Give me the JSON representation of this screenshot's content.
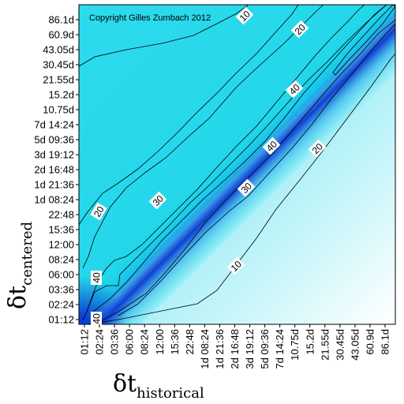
{
  "chart_data": {
    "type": "heatmap",
    "copyright": "Copyright Gilles Zumbach 2012",
    "xlabel": {
      "symbol": "δt",
      "subscript": "historical"
    },
    "ylabel": {
      "symbol": "δt",
      "subscript": "centered"
    },
    "ticks": [
      "01:12",
      "02:24",
      "03:36",
      "06:00",
      "08:24",
      "12:00",
      "15:36",
      "22:48",
      "1d 08:24",
      "1d 21:36",
      "2d 16:48",
      "3d 19:12",
      "5d 09:36",
      "7d 14:24",
      "10.75d",
      "15.2d",
      "21.55d",
      "30.45d",
      "43.05d",
      "60.9d",
      "86.1d"
    ],
    "contour_levels": [
      10,
      20,
      30,
      40
    ],
    "contour_labels": [
      {
        "text": "10",
        "value": 10
      },
      {
        "text": "20",
        "value": 20
      },
      {
        "text": "40",
        "value": 40
      },
      {
        "text": "40",
        "value": 40
      },
      {
        "text": "20",
        "value": 20
      },
      {
        "text": "20",
        "value": 20
      },
      {
        "text": "30",
        "value": 30
      },
      {
        "text": "30",
        "value": 30
      },
      {
        "text": "40",
        "value": 40
      },
      {
        "text": "10",
        "value": 10
      },
      {
        "text": "40",
        "value": 40
      }
    ],
    "colors": {
      "low": "#ffffff",
      "mid": "#00e5ee",
      "high": "#0020c8"
    }
  }
}
